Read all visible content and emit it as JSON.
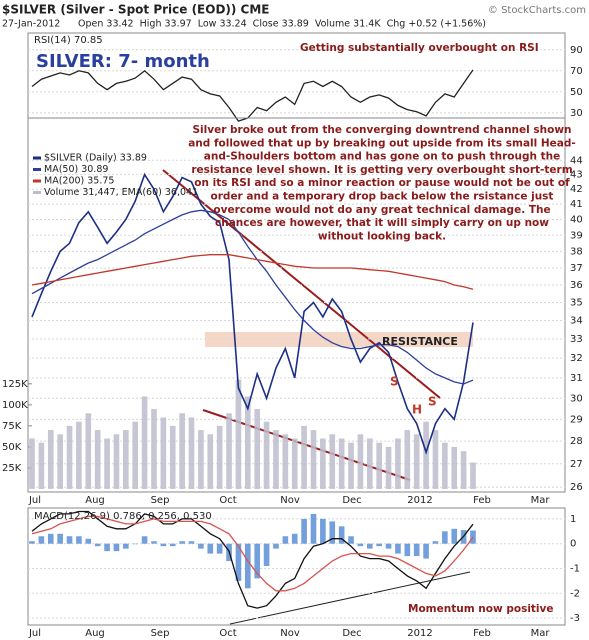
{
  "header": {
    "symbol_line": "$SILVER (Silver - Spot Price (EOD)) CME",
    "copyright": "© StockCharts.com",
    "date": "27-Jan-2012",
    "stats": "Open 33.42  High 33.97  Low 33.24  Close 33.89  Volume 31.4K  Chg +0.52 (+1.56%)"
  },
  "chart_data": [
    {
      "type": "line",
      "title": "SILVER: 7- month",
      "label": "RSI(14) 70.85",
      "annotation": "Getting substantially overbought on RSI",
      "series": [
        {
          "color": "#222222",
          "values": [
            55,
            62,
            65,
            68,
            66,
            70,
            68,
            58,
            52,
            58,
            60,
            63,
            70,
            62,
            52,
            58,
            64,
            62,
            52,
            48,
            46,
            35,
            22,
            25,
            35,
            32,
            40,
            45,
            38,
            58,
            60,
            55,
            60,
            55,
            45,
            40,
            45,
            47,
            44,
            37,
            33,
            31,
            27,
            40,
            48,
            45,
            58,
            70.85
          ]
        }
      ],
      "ylim": [
        25,
        106
      ],
      "yticks": [
        90,
        70,
        50,
        30
      ],
      "grid": true
    },
    {
      "type": "line",
      "log": true,
      "x_labels": [
        "Jul",
        "Aug",
        "Sep",
        "Oct",
        "Nov",
        "Dec",
        "2012",
        "Feb",
        "Mar"
      ],
      "series": [
        {
          "name": "$SILVER (Daily) 33.89",
          "color": "#1c2f86",
          "values": [
            34.2,
            35.5,
            36.8,
            38.0,
            38.5,
            39.8,
            40.5,
            39.5,
            38.5,
            39.2,
            40.0,
            41.2,
            43.0,
            42.0,
            40.5,
            41.5,
            42.8,
            42.5,
            41.0,
            40.2,
            39.8,
            37.5,
            30.5,
            29.5,
            31.2,
            30.0,
            31.5,
            32.5,
            31.0,
            34.5,
            35.0,
            34.2,
            35.2,
            34.5,
            33.0,
            31.8,
            32.5,
            32.8,
            32.3,
            30.8,
            29.5,
            28.8,
            27.5,
            28.8,
            29.5,
            29.0,
            30.8,
            33.89
          ]
        },
        {
          "name": "MA(50) 30.89",
          "color": "#2e3f9e",
          "values": [
            35.5,
            35.8,
            36.1,
            36.4,
            36.7,
            37.0,
            37.3,
            37.5,
            37.8,
            38.1,
            38.4,
            38.7,
            39.1,
            39.4,
            39.7,
            40.0,
            40.3,
            40.5,
            40.6,
            40.5,
            40.3,
            40.0,
            39.2,
            38.3,
            37.5,
            36.8,
            36.0,
            35.3,
            34.6,
            34.0,
            33.5,
            33.1,
            32.8,
            32.6,
            32.5,
            32.5,
            32.6,
            32.7,
            32.7,
            32.6,
            32.3,
            31.9,
            31.5,
            31.2,
            31.0,
            30.8,
            30.7,
            30.89
          ]
        },
        {
          "name": "MA(200) 35.75",
          "color": "#c0392b",
          "values": [
            36.0,
            36.1,
            36.2,
            36.3,
            36.4,
            36.5,
            36.6,
            36.7,
            36.8,
            36.9,
            37.0,
            37.1,
            37.2,
            37.3,
            37.4,
            37.5,
            37.6,
            37.7,
            37.75,
            37.8,
            37.8,
            37.8,
            37.7,
            37.6,
            37.5,
            37.4,
            37.3,
            37.2,
            37.1,
            37.05,
            37.0,
            37.0,
            37.0,
            37.0,
            37.0,
            36.95,
            36.9,
            36.85,
            36.8,
            36.7,
            36.6,
            36.5,
            36.4,
            36.3,
            36.2,
            36.0,
            35.9,
            35.75
          ]
        },
        {
          "name": "Volume 31,447, EMA(60) 36,041",
          "type": "bar",
          "axis": "y2",
          "color": "#bcbccc",
          "values": [
            60,
            55,
            70,
            65,
            75,
            80,
            90,
            70,
            60,
            65,
            70,
            80,
            110,
            95,
            85,
            75,
            90,
            85,
            70,
            65,
            75,
            90,
            130,
            110,
            95,
            80,
            70,
            65,
            60,
            75,
            70,
            60,
            65,
            60,
            55,
            65,
            60,
            55,
            50,
            60,
            70,
            65,
            80,
            70,
            55,
            50,
            45,
            31.447
          ]
        }
      ],
      "ylim": [
        25.8,
        47.1
      ],
      "yticks": [
        26,
        27,
        28,
        29,
        30,
        31,
        32,
        33,
        34,
        35,
        36,
        37,
        38,
        39,
        40,
        41,
        42,
        43,
        44
      ],
      "y2lim": [
        -3.6,
        441
      ],
      "y2ticks": [
        {
          "value": 25,
          "label": "25K"
        },
        {
          "value": 50,
          "label": "50K"
        },
        {
          "value": 75,
          "label": "75K"
        },
        {
          "value": 100,
          "label": "100K"
        },
        {
          "value": 125,
          "label": "125K"
        }
      ],
      "annotation_lines": [
        "Silver broke out from the converging downtrend channel shown",
        "and followed  that up by breaking out upside from its small Head-",
        "and-Shoulders bottom and has gone on to push through the",
        "resistance level shown. It is getting very overbought short-term",
        "on its RSI and so a minor reaction or pause would not be out of",
        "order and a temporary drop back below the rsistance just",
        "overcome would not do any great technical damage. The",
        "chances are however, that it will simply carry on up now",
        "without looking back."
      ],
      "resistance_label": "RESISTANCE",
      "pattern_labels": [
        "S",
        "H",
        "S"
      ],
      "grid": true
    },
    {
      "type": "line",
      "label": "MACD(12,26,9) 0.786, 0.256, 0.530",
      "annotation": "Momentum now positive",
      "series": [
        {
          "type": "bar",
          "color": "#5b8fd6",
          "values": [
            0.1,
            0.3,
            0.4,
            0.4,
            0.3,
            0.3,
            0.2,
            -0.1,
            -0.3,
            -0.3,
            -0.2,
            0,
            0.3,
            0.1,
            -0.1,
            -0.1,
            0.1,
            0.1,
            -0.2,
            -0.4,
            -0.4,
            -0.7,
            -1.5,
            -1.8,
            -1.4,
            -0.9,
            -0.2,
            0.3,
            0.4,
            1.0,
            1.2,
            1.0,
            0.9,
            0.7,
            0.3,
            -0.1,
            -0.2,
            -0.1,
            -0.2,
            -0.4,
            -0.5,
            -0.5,
            -0.6,
            0.1,
            0.5,
            0.6,
            0.55,
            0.53
          ]
        },
        {
          "color": "#111111",
          "values": [
            0.5,
            0.8,
            1.0,
            1.2,
            1.2,
            1.3,
            1.3,
            1.0,
            0.7,
            0.6,
            0.6,
            0.8,
            1.2,
            1.1,
            0.8,
            0.8,
            1.0,
            1.0,
            0.7,
            0.4,
            0.2,
            -0.3,
            -1.6,
            -2.5,
            -2.6,
            -2.5,
            -2.1,
            -1.6,
            -1.4,
            -0.6,
            -0.1,
            0.0,
            0.2,
            0.2,
            -0.1,
            -0.5,
            -0.6,
            -0.6,
            -0.7,
            -1.0,
            -1.3,
            -1.5,
            -1.8,
            -1.2,
            -0.6,
            -0.1,
            0.3,
            0.786
          ]
        },
        {
          "color": "#d9534f",
          "values": [
            0.4,
            0.5,
            0.6,
            0.8,
            0.9,
            1.0,
            1.1,
            1.1,
            1.0,
            0.9,
            0.8,
            0.8,
            0.9,
            1.0,
            0.9,
            0.9,
            0.9,
            0.9,
            0.9,
            0.8,
            0.6,
            0.4,
            -0.1,
            -0.7,
            -1.2,
            -1.6,
            -1.9,
            -1.9,
            -1.8,
            -1.6,
            -1.3,
            -1.0,
            -0.7,
            -0.5,
            -0.4,
            -0.4,
            -0.4,
            -0.5,
            -0.5,
            -0.6,
            -0.8,
            -1.0,
            -1.2,
            -1.3,
            -1.1,
            -0.7,
            -0.25,
            0.256
          ]
        }
      ],
      "ylim": [
        -3.28,
        1.44
      ],
      "yticks": [
        1,
        0,
        -1,
        -2,
        -3
      ],
      "grid": true
    }
  ]
}
